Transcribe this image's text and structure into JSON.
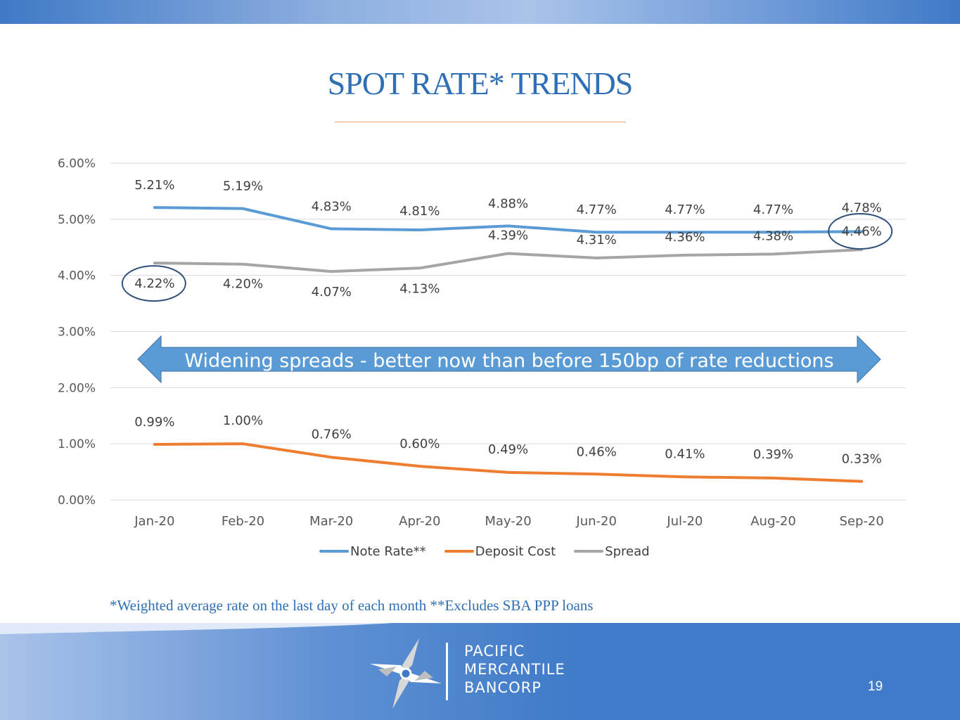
{
  "slide": {
    "title": "SPOT RATE* TRENDS",
    "footnote": "*Weighted average rate on the last day of each month  **Excludes SBA PPP loans",
    "page_number": "19",
    "brand_lines": [
      "PACIFIC",
      "MERCANTILE",
      "BANCORP"
    ]
  },
  "colors": {
    "title": "#2f6fb7",
    "note_rate": "#5b9bd5",
    "deposit_cost": "#ed7d31",
    "spread": "#a5a5a5",
    "arrow": "#5b9bd5",
    "footer": "#3f7bc8"
  },
  "chart_data": {
    "type": "line",
    "categories": [
      "Jan-20",
      "Feb-20",
      "Mar-20",
      "Apr-20",
      "May-20",
      "Jun-20",
      "Jul-20",
      "Aug-20",
      "Sep-20"
    ],
    "series": [
      {
        "name": "Note Rate**",
        "values": [
          5.21,
          5.19,
          4.83,
          4.81,
          4.88,
          4.77,
          4.77,
          4.77,
          4.78
        ],
        "labels": [
          "5.21%",
          "5.19%",
          "4.83%",
          "4.81%",
          "4.88%",
          "4.77%",
          "4.77%",
          "4.77%",
          "4.78%"
        ]
      },
      {
        "name": "Deposit Cost",
        "values": [
          0.99,
          1.0,
          0.76,
          0.6,
          0.49,
          0.46,
          0.41,
          0.39,
          0.33
        ],
        "labels": [
          "0.99%",
          "1.00%",
          "0.76%",
          "0.60%",
          "0.49%",
          "0.46%",
          "0.41%",
          "0.39%",
          "0.33%"
        ]
      },
      {
        "name": "Spread",
        "values": [
          4.22,
          4.2,
          4.07,
          4.13,
          4.39,
          4.31,
          4.36,
          4.38,
          4.46
        ],
        "labels": [
          "4.22%",
          "4.20%",
          "4.07%",
          "4.13%",
          "4.39%",
          "4.31%",
          "4.36%",
          "4.38%",
          "4.46%"
        ]
      }
    ],
    "y_ticks": [
      "0.00%",
      "1.00%",
      "2.00%",
      "3.00%",
      "4.00%",
      "5.00%",
      "6.00%"
    ],
    "ylim": [
      0,
      6
    ],
    "grid": true,
    "legend": "bottom",
    "annotation": "Widening spreads - better now than before 150bp of rate reductions",
    "highlighted_points": [
      "Spread Jan-20",
      "Spread Sep-20"
    ],
    "title": "",
    "xlabel": "",
    "ylabel": ""
  }
}
